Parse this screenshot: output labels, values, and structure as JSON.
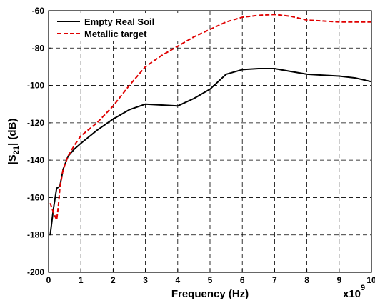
{
  "chart_data": {
    "type": "line",
    "title": "",
    "xlabel": "Frequency (Hz)",
    "x_multiplier_base": "x10",
    "x_multiplier_exp": "9",
    "ylabel_pre": "|S",
    "ylabel_sub": "21",
    "ylabel_post": "| (dB)",
    "xlim": [
      0,
      10
    ],
    "ylim": [
      -200,
      -60
    ],
    "xticks": [
      "0",
      "1",
      "2",
      "3",
      "4",
      "5",
      "6",
      "7",
      "8",
      "9",
      "10"
    ],
    "yticks": [
      "-200",
      "-180",
      "-160",
      "-140",
      "-120",
      "-100",
      "-80",
      "-60"
    ],
    "grid": true,
    "legend_position": "top-left",
    "series": [
      {
        "name": "Empty Real Soil",
        "color": "#000000",
        "dash": "solid",
        "x": [
          0.05,
          0.15,
          0.25,
          0.3,
          0.35,
          0.45,
          0.6,
          0.8,
          1.0,
          1.5,
          2.0,
          2.5,
          3.0,
          3.5,
          4.0,
          4.5,
          5.0,
          5.5,
          6.0,
          6.5,
          7.0,
          7.5,
          8.0,
          8.5,
          9.0,
          9.5,
          10.0
        ],
        "y": [
          -180,
          -166,
          -155,
          -154.5,
          -154,
          -145,
          -138,
          -134,
          -131,
          -124,
          -118,
          -113,
          -110,
          -110.5,
          -111,
          -107,
          -102,
          -94,
          -91.5,
          -91,
          -91,
          -92.5,
          -94,
          -94.5,
          -95,
          -96,
          -98
        ]
      },
      {
        "name": "Metallic target",
        "color": "#e00000",
        "dash": "dashed",
        "x": [
          0.05,
          0.15,
          0.25,
          0.3,
          0.35,
          0.45,
          0.6,
          0.8,
          1.0,
          1.5,
          2.0,
          2.5,
          3.0,
          3.5,
          4.0,
          4.5,
          5.0,
          5.5,
          6.0,
          6.5,
          7.0,
          7.5,
          8.0,
          8.5,
          9.0,
          9.5,
          10.0
        ],
        "y": [
          -163,
          -168,
          -172,
          -165,
          -155,
          -145,
          -138,
          -132,
          -127,
          -120,
          -111,
          -100,
          -90,
          -84,
          -79,
          -74,
          -70,
          -66,
          -63.5,
          -62.5,
          -62,
          -63,
          -65,
          -65.5,
          -66,
          -66,
          -66
        ]
      }
    ]
  }
}
